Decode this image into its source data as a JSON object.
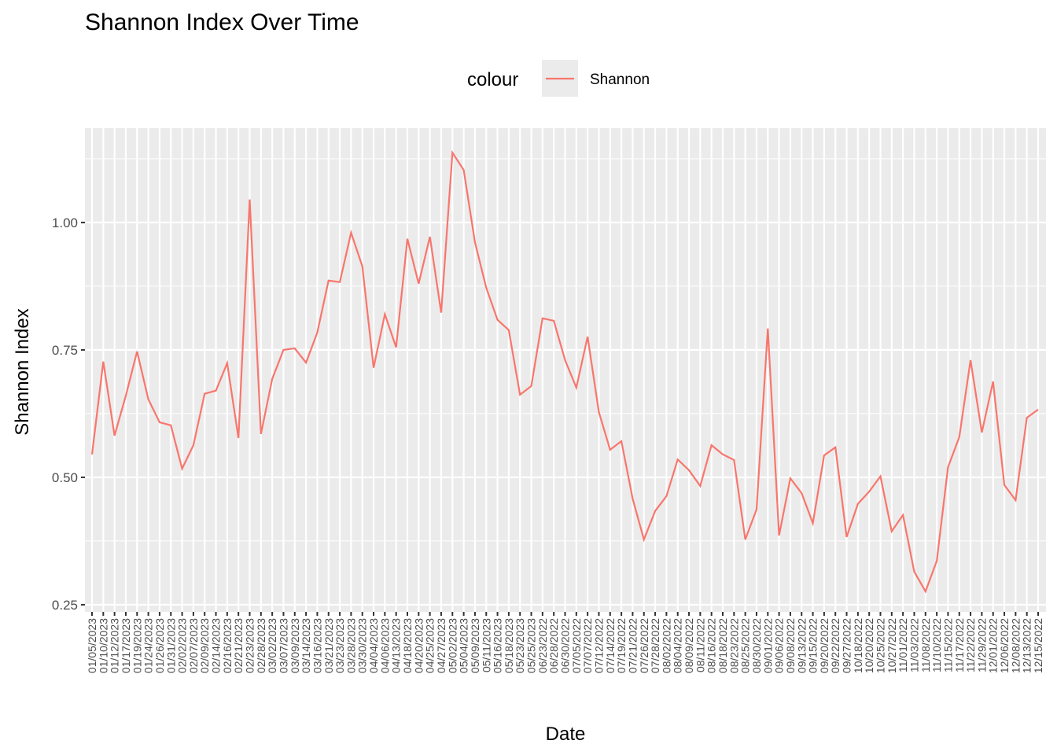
{
  "chart_data": {
    "type": "line",
    "title": "Shannon Index Over Time",
    "x_label": "Date",
    "y_label": "Shannon Index",
    "legend_title": "colour",
    "categories": [
      "01/05/2023",
      "01/10/2023",
      "01/12/2023",
      "01/17/2023",
      "01/19/2023",
      "01/24/2023",
      "01/26/2023",
      "01/31/2023",
      "02/02/2023",
      "02/07/2023",
      "02/09/2023",
      "02/14/2023",
      "02/16/2023",
      "02/21/2023",
      "02/23/2023",
      "02/28/2023",
      "03/02/2023",
      "03/07/2023",
      "03/09/2023",
      "03/14/2023",
      "03/16/2023",
      "03/21/2023",
      "03/23/2023",
      "03/28/2023",
      "03/30/2023",
      "04/04/2023",
      "04/06/2023",
      "04/13/2023",
      "04/18/2023",
      "04/20/2023",
      "04/25/2023",
      "04/27/2023",
      "05/02/2023",
      "05/04/2023",
      "05/09/2023",
      "05/11/2023",
      "05/16/2023",
      "05/18/2023",
      "05/23/2023",
      "05/25/2023",
      "06/23/2022",
      "06/28/2022",
      "06/30/2022",
      "07/05/2022",
      "07/07/2022",
      "07/12/2022",
      "07/14/2022",
      "07/19/2022",
      "07/21/2022",
      "07/26/2022",
      "07/28/2022",
      "08/02/2022",
      "08/04/2022",
      "08/09/2022",
      "08/11/2022",
      "08/16/2022",
      "08/18/2022",
      "08/23/2022",
      "08/25/2022",
      "08/30/2022",
      "09/01/2022",
      "09/06/2022",
      "09/08/2022",
      "09/13/2022",
      "09/15/2022",
      "09/20/2022",
      "09/22/2022",
      "09/27/2022",
      "10/18/2022",
      "10/20/2022",
      "10/25/2022",
      "10/27/2022",
      "11/01/2022",
      "11/03/2022",
      "11/08/2022",
      "11/10/2022",
      "11/15/2022",
      "11/17/2022",
      "11/22/2022",
      "11/29/2022",
      "12/01/2022",
      "12/06/2022",
      "12/08/2022",
      "12/13/2022",
      "12/15/2022"
    ],
    "series": [
      {
        "name": "Shannon",
        "color": "#F8766D",
        "values": [
          0.545,
          0.727,
          0.582,
          0.66,
          0.747,
          0.653,
          0.608,
          0.602,
          0.517,
          0.563,
          0.664,
          0.67,
          0.724,
          0.577,
          1.045,
          0.585,
          0.693,
          0.75,
          0.753,
          0.725,
          0.784,
          0.886,
          0.883,
          0.98,
          0.914,
          0.715,
          0.82,
          0.755,
          0.968,
          0.88,
          0.972,
          0.823,
          1.137,
          1.103,
          0.961,
          0.872,
          0.809,
          0.789,
          0.662,
          0.679,
          0.812,
          0.807,
          0.73,
          0.676,
          0.776,
          0.628,
          0.554,
          0.571,
          0.458,
          0.378,
          0.434,
          0.463,
          0.535,
          0.514,
          0.483,
          0.563,
          0.545,
          0.534,
          0.378,
          0.437,
          0.792,
          0.386,
          0.498,
          0.469,
          0.41,
          0.543,
          0.559,
          0.383,
          0.448,
          0.472,
          0.502,
          0.394,
          0.426,
          0.315,
          0.276,
          0.336,
          0.52,
          0.579,
          0.73,
          0.588,
          0.688,
          0.485,
          0.455,
          0.617,
          0.633
        ]
      }
    ],
    "ylim": [
      0.236,
      1.185
    ],
    "yticks": [
      0.25,
      {
        "value": 0.5,
        "label": "0.50"
      },
      0.75,
      {
        "value": 1,
        "label": "1.00"
      }
    ],
    "grid": true
  }
}
